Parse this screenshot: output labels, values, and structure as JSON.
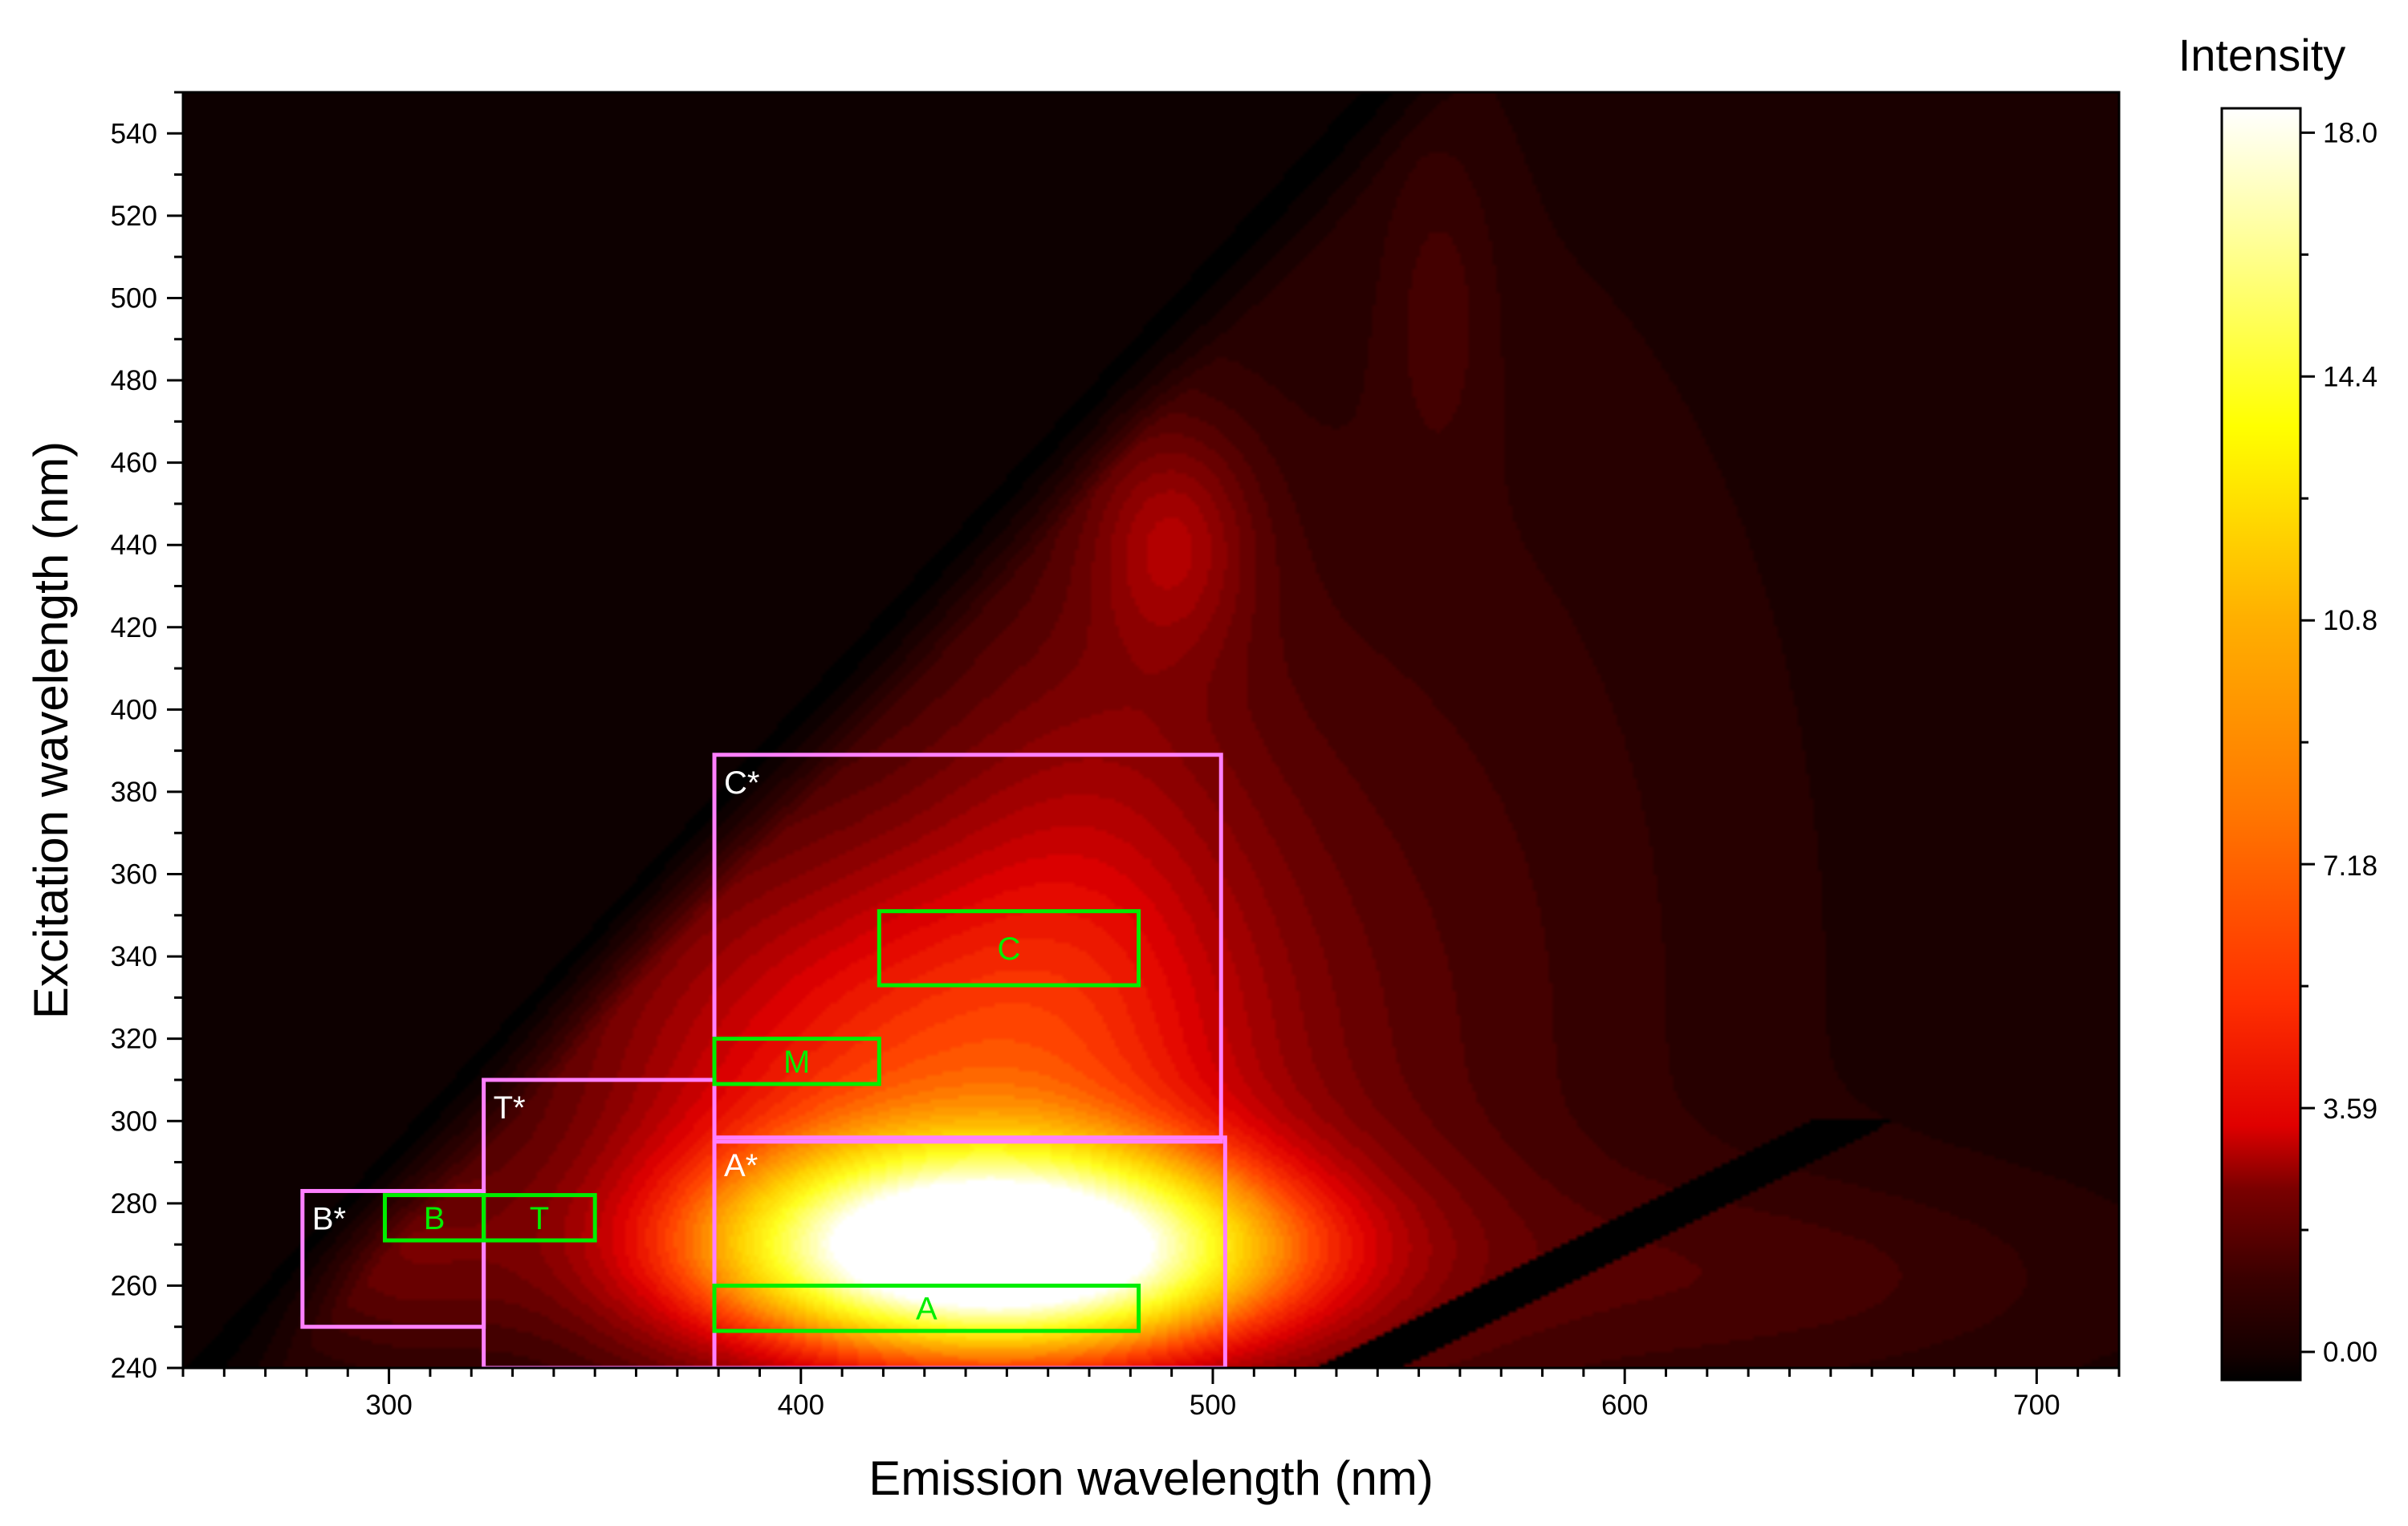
{
  "chart_data": {
    "type": "heatmap",
    "title": "",
    "xlabel": "Emission wavelength (nm)",
    "ylabel": "Excitation wavelength (nm)",
    "xlim": [
      250,
      720
    ],
    "ylim": [
      240,
      550
    ],
    "xticks": [
      300,
      400,
      500,
      600,
      700
    ],
    "yticks": [
      240,
      260,
      280,
      300,
      320,
      340,
      360,
      380,
      400,
      420,
      440,
      460,
      480,
      500,
      520,
      540
    ],
    "colorbar": {
      "title": "Intensity",
      "min": 0,
      "max": 18.3,
      "ticks": [
        0.0,
        3.59,
        7.18,
        10.8,
        14.4,
        18.0
      ],
      "tick_labels": [
        "0.00",
        "3.59",
        "7.18",
        "10.8",
        "14.4",
        "18.0"
      ],
      "colormap": [
        "#000000",
        "#3a0000",
        "#8a0000",
        "#e00000",
        "#ff4000",
        "#ff9000",
        "#ffd000",
        "#ffff20",
        "#ffff90",
        "#ffffff"
      ],
      "scale_position": "right"
    },
    "peaks": [
      {
        "em": 448,
        "ex": 268,
        "sx": 48,
        "sy": 17,
        "value": 18.0
      },
      {
        "em": 425,
        "ex": 305,
        "sx": 55,
        "sy": 45,
        "value": 6.5
      },
      {
        "em": 490,
        "ex": 442,
        "sx": 14,
        "sy": 20,
        "value": 2.8
      },
      {
        "em": 470,
        "ex": 360,
        "sx": 30,
        "sy": 60,
        "value": 2.2
      },
      {
        "em": 540,
        "ex": 330,
        "sx": 60,
        "sy": 110,
        "value": 1.4
      },
      {
        "em": 555,
        "ex": 500,
        "sx": 10,
        "sy": 30,
        "value": 1.0
      },
      {
        "em": 640,
        "ex": 262,
        "sx": 55,
        "sy": 18,
        "value": 1.2
      },
      {
        "em": 300,
        "ex": 268,
        "sx": 22,
        "sy": 18,
        "value": 2.0
      }
    ],
    "regions": [
      {
        "name": "B*",
        "em": [
          279,
          323
        ],
        "ex": [
          250,
          283
        ],
        "color": "#ff80ff",
        "label_color": "#ffffff",
        "label_pos": "top-left"
      },
      {
        "name": "T*",
        "em": [
          323,
          379
        ],
        "ex": [
          240,
          310
        ],
        "color": "#ff80ff",
        "label_color": "#ffffff",
        "label_pos": "top-left"
      },
      {
        "name": "C*",
        "em": [
          379,
          502
        ],
        "ex": [
          295,
          389
        ],
        "color": "#ff80ff",
        "label_color": "#ffffff",
        "label_pos": "top-left"
      },
      {
        "name": "A*",
        "em": [
          379,
          503
        ],
        "ex": [
          240,
          296
        ],
        "color": "#ff80ff",
        "label_color": "#ffffff",
        "label_pos": "top-left"
      },
      {
        "name": "B",
        "em": [
          299,
          323
        ],
        "ex": [
          271,
          282
        ],
        "color": "#00ee00",
        "label_color": "#00ee00",
        "label_pos": "center"
      },
      {
        "name": "T",
        "em": [
          323,
          350
        ],
        "ex": [
          271,
          282
        ],
        "color": "#00ee00",
        "label_color": "#00ee00",
        "label_pos": "center"
      },
      {
        "name": "M",
        "em": [
          379,
          419
        ],
        "ex": [
          309,
          320
        ],
        "color": "#00ee00",
        "label_color": "#00ee00",
        "label_pos": "center"
      },
      {
        "name": "C",
        "em": [
          419,
          482
        ],
        "ex": [
          333,
          351
        ],
        "color": "#00ee00",
        "label_color": "#00ee00",
        "label_pos": "center"
      },
      {
        "name": "A",
        "em": [
          379,
          482
        ],
        "ex": [
          249,
          260
        ],
        "color": "#00ee00",
        "label_color": "#00ee00",
        "label_pos": "center"
      }
    ]
  }
}
